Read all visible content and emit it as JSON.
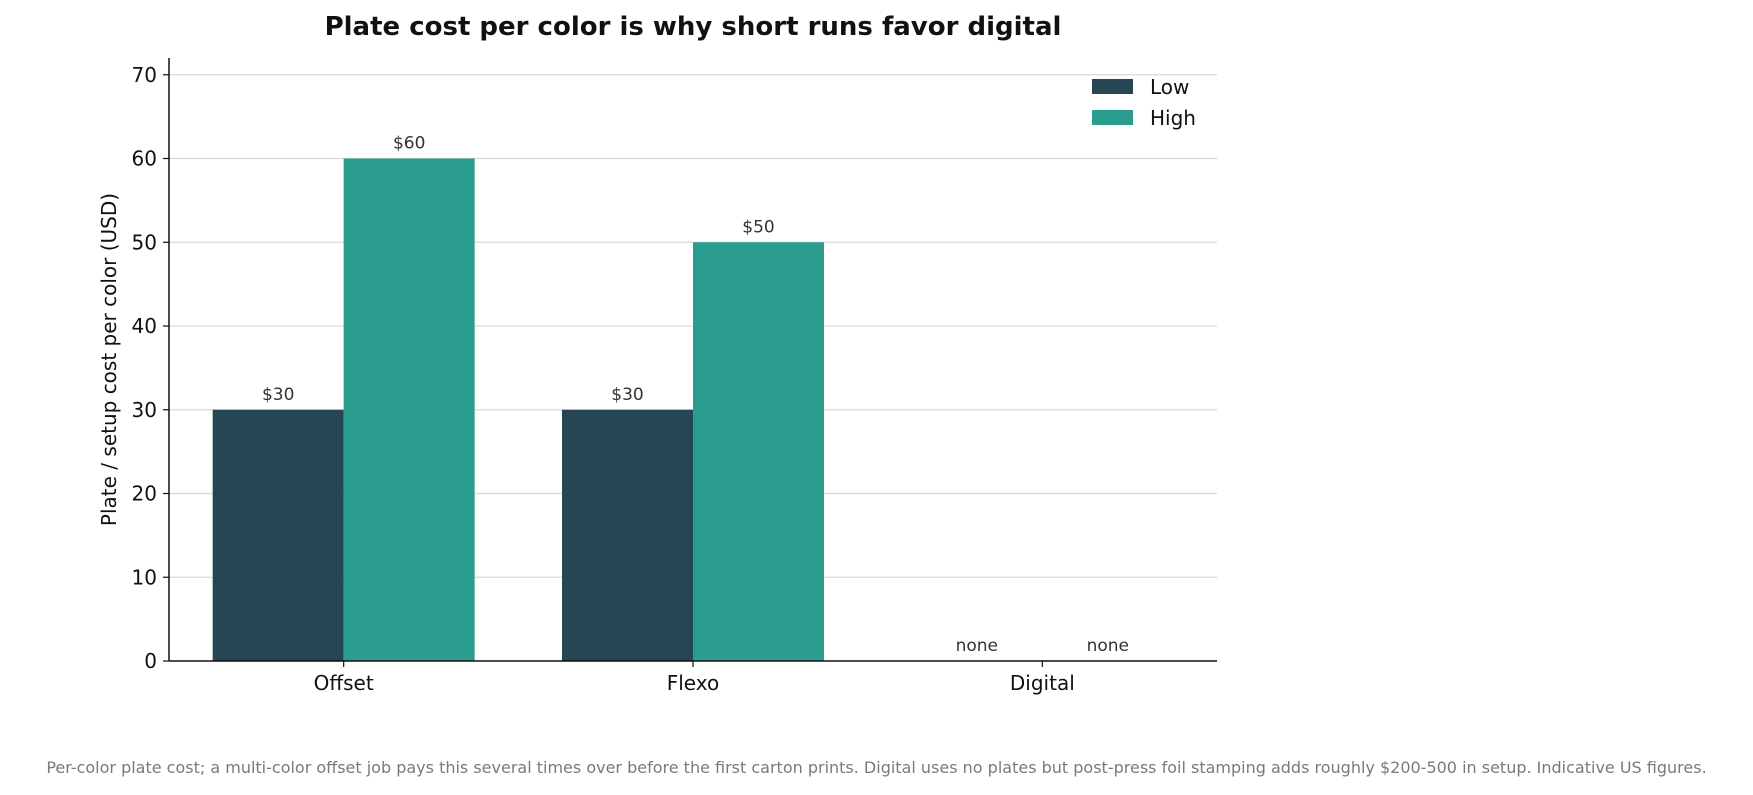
{
  "chart_data": {
    "type": "bar",
    "title": "Plate cost per color is why short runs favor digital",
    "xlabel": "",
    "ylabel": "Plate / setup cost per color (USD)",
    "categories": [
      "Offset",
      "Flexo",
      "Digital"
    ],
    "series": [
      {
        "name": "Low",
        "values": [
          30,
          30,
          0
        ],
        "labels": [
          "$30",
          "$30",
          "none"
        ],
        "color": "#264653"
      },
      {
        "name": "High",
        "values": [
          60,
          50,
          0
        ],
        "labels": [
          "$60",
          "$50",
          "none"
        ],
        "color": "#2a9d8f"
      }
    ],
    "ylim": [
      0,
      72
    ],
    "yticks": [
      0,
      10,
      20,
      30,
      40,
      50,
      60,
      70
    ],
    "grid": true,
    "legend_position": "top-right"
  },
  "footnote": "Per-color plate cost; a multi-color offset job pays this several times over before the first carton prints. Digital uses no plates but post-press foil stamping adds roughly $200-500 in setup. Indicative US figures.",
  "colors": {
    "low": "#264653",
    "high": "#2a9d8f",
    "grid": "#d9d9d9",
    "axis": "#111111"
  }
}
